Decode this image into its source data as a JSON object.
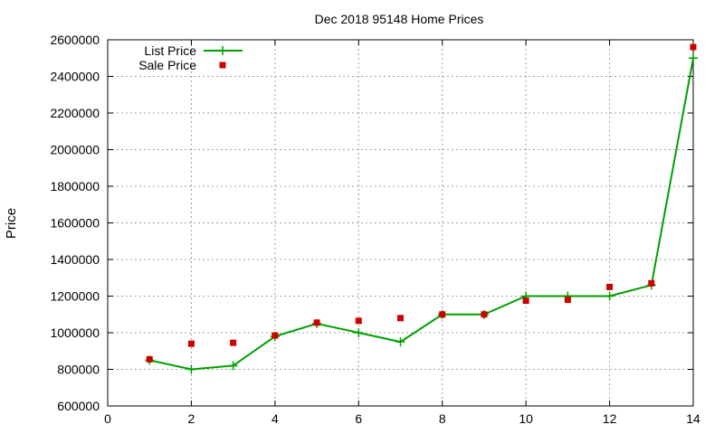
{
  "chart_data": {
    "type": "line",
    "title": "Dec 2018 95148 Home Prices",
    "xlabel": "",
    "ylabel": "Price",
    "xlim": [
      0,
      14
    ],
    "ylim": [
      600000,
      2600000
    ],
    "x_ticks": [
      "0",
      "2",
      "4",
      "6",
      "8",
      "10",
      "12",
      "14"
    ],
    "y_ticks": [
      "600000",
      "800000",
      "1000000",
      "1200000",
      "1400000",
      "1600000",
      "1800000",
      "2000000",
      "2200000",
      "2400000",
      "2600000"
    ],
    "grid": true,
    "legend_position": "top-left",
    "series": [
      {
        "name": "List Price",
        "style": "line-with-plus-markers",
        "color": "#00a000",
        "points": [
          [
            1,
            850000
          ],
          [
            2,
            800000
          ],
          [
            3,
            820000
          ],
          [
            4,
            980000
          ],
          [
            5,
            1050000
          ],
          [
            6,
            1000000
          ],
          [
            7,
            950000
          ],
          [
            8,
            1100000
          ],
          [
            9,
            1100000
          ],
          [
            10,
            1200000
          ],
          [
            11,
            1200000
          ],
          [
            12,
            1200000
          ],
          [
            13,
            1260000
          ],
          [
            14,
            2500000
          ]
        ]
      },
      {
        "name": "Sale Price",
        "style": "square-markers",
        "color": "#cc0000",
        "points": [
          [
            1,
            855000
          ],
          [
            2,
            940000
          ],
          [
            3,
            945000
          ],
          [
            4,
            985000
          ],
          [
            5,
            1055000
          ],
          [
            6,
            1065000
          ],
          [
            7,
            1080000
          ],
          [
            8,
            1100000
          ],
          [
            9,
            1100000
          ],
          [
            10,
            1175000
          ],
          [
            11,
            1180000
          ],
          [
            12,
            1250000
          ],
          [
            13,
            1270000
          ],
          [
            14,
            2560000
          ]
        ]
      }
    ]
  }
}
